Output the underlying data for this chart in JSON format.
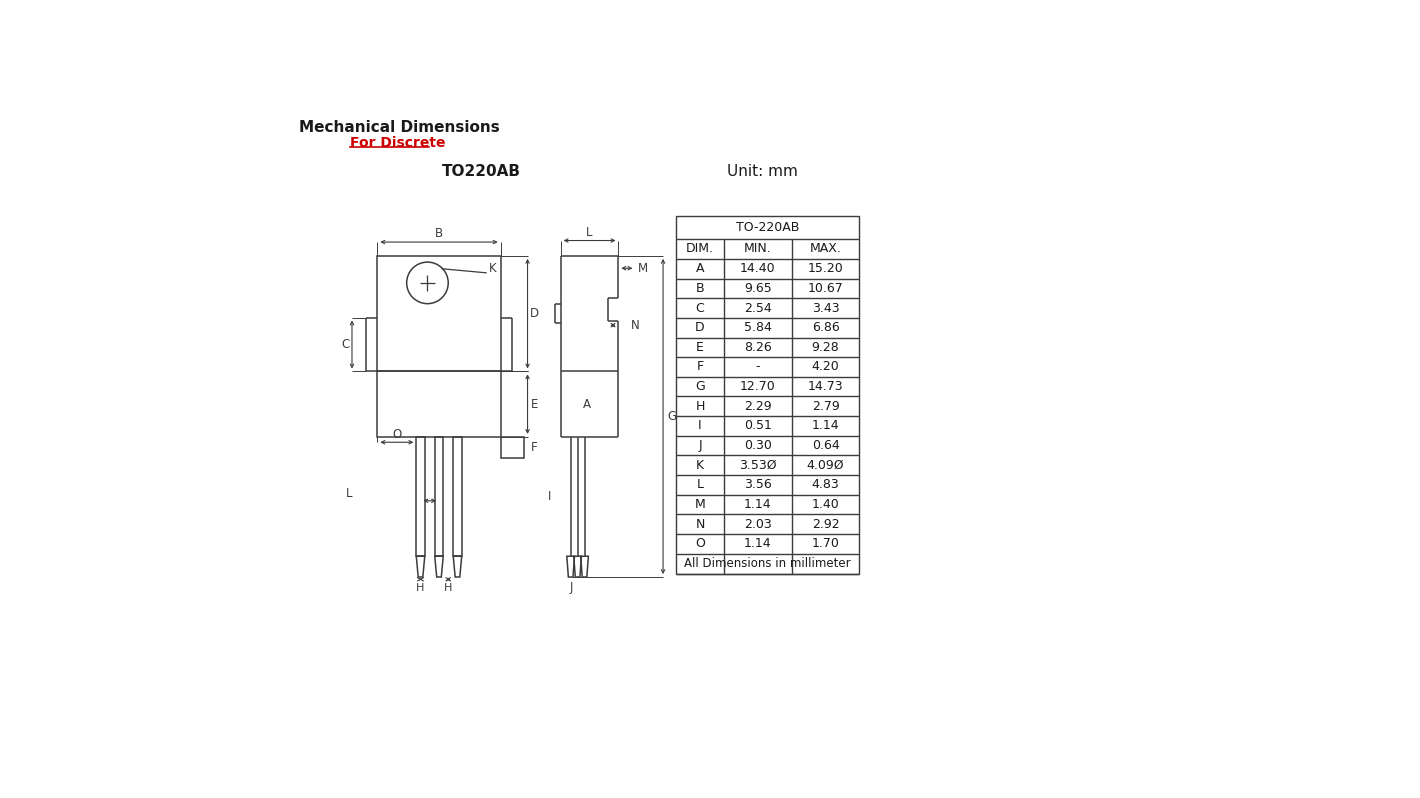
{
  "title1": "Mechanical Dimensions",
  "title2": "For Discrete",
  "label_to220ab": "TO220AB",
  "label_unit": "Unit: mm",
  "bg_color": "#ffffff",
  "line_color": "#3c3c3c",
  "table_header": "TO-220AB",
  "col_headers": [
    "DIM.",
    "MIN.",
    "MAX."
  ],
  "rows": [
    [
      "A",
      "14.40",
      "15.20"
    ],
    [
      "B",
      "9.65",
      "10.67"
    ],
    [
      "C",
      "2.54",
      "3.43"
    ],
    [
      "D",
      "5.84",
      "6.86"
    ],
    [
      "E",
      "8.26",
      "9.28"
    ],
    [
      "F",
      "-",
      "4.20"
    ],
    [
      "G",
      "12.70",
      "14.73"
    ],
    [
      "H",
      "2.29",
      "2.79"
    ],
    [
      "I",
      "0.51",
      "1.14"
    ],
    [
      "J",
      "0.30",
      "0.64"
    ],
    [
      "K",
      "3.53Ø",
      "4.09Ø"
    ],
    [
      "L",
      "3.56",
      "4.83"
    ],
    [
      "M",
      "1.14",
      "1.40"
    ],
    [
      "N",
      "2.03",
      "2.92"
    ],
    [
      "O",
      "1.14",
      "1.70"
    ]
  ],
  "footer": "All Dimensions in millimeter"
}
